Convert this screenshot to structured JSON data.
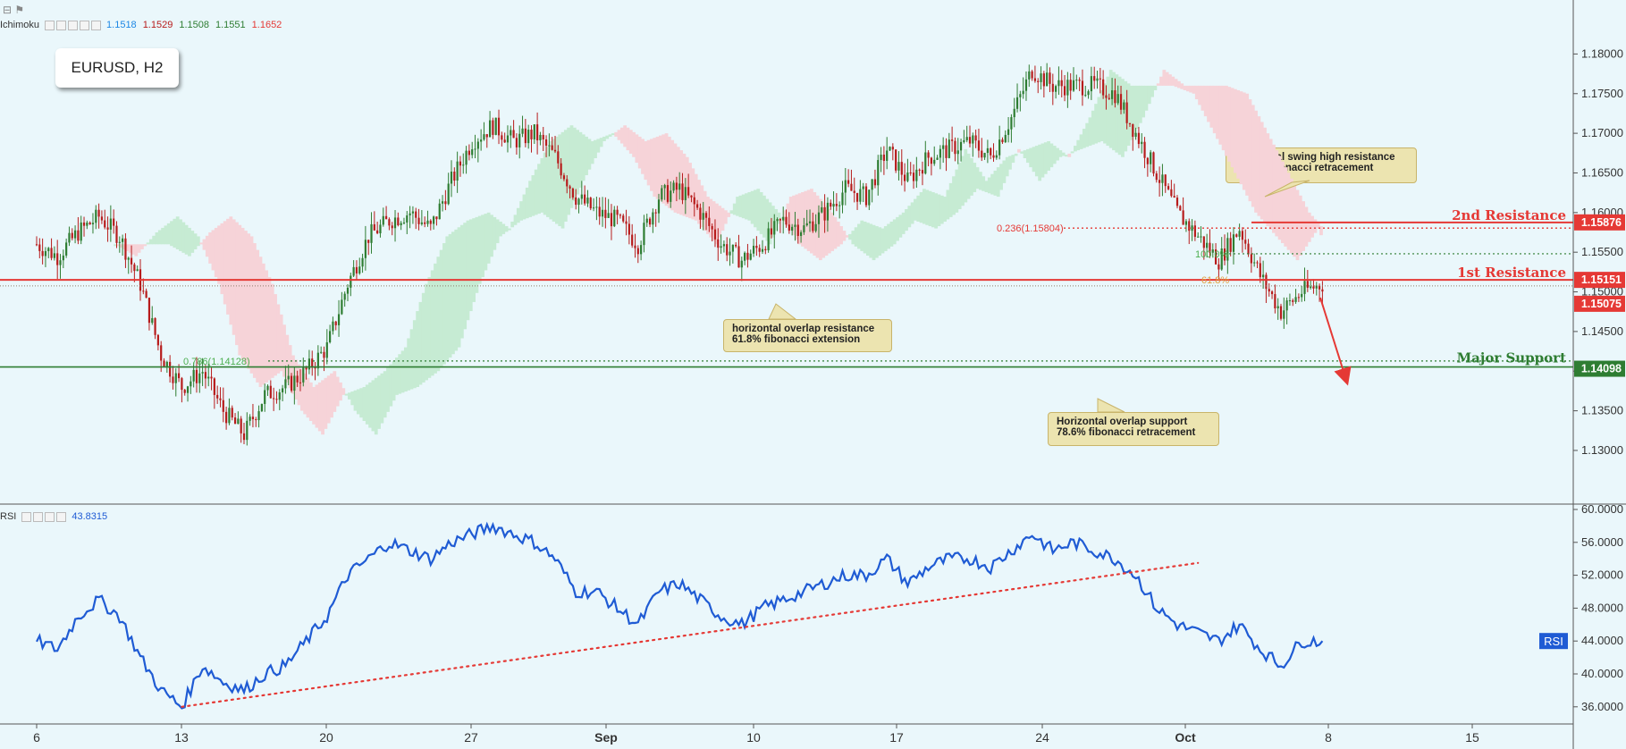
{
  "colors": {
    "background": "#eaf7fb",
    "bull": "#2e7d32",
    "bear": "#b71c1c",
    "rsi": "#1f5bd4",
    "resistance": "#e53935",
    "support": "#2e7d32",
    "cloud_bull": "#c6ebd3",
    "cloud_bear": "#f6d3d8"
  },
  "header": {
    "symbol_label": "EURUSD, H2",
    "ichimoku_label": "Ichimoku",
    "ichimoku_values": [
      "1.1518",
      "1.1529",
      "1.1508",
      "1.1551",
      "1.1652"
    ],
    "ichimoku_colors": [
      "#1e88e5",
      "#b71c1c",
      "#2e7d32",
      "#2e7d32",
      "#e53935"
    ],
    "rsi_label": "RSI",
    "rsi_value": "43.8315"
  },
  "annotations": {
    "swing_high": [
      "Horizontal swing high resistance",
      "23.6% fibonacci retracement"
    ],
    "overlap_resistance": [
      "horizontal overlap resistance",
      "61.8% fibonacci extension"
    ],
    "overlap_support": [
      "Horizontal overlap support",
      "78.6% fibonacci retracement"
    ],
    "fib_236": "0.236(1.15804)",
    "fib_100": "100.0%",
    "fib_618": "61.8%",
    "fib_786": "0.786(1.14128)",
    "second_resistance": "2nd Resistance",
    "first_resistance": "1st Resistance",
    "major_support": "Major Support",
    "rsi_badge": "RSI"
  },
  "price_tags": {
    "second_resistance": "1.15876",
    "first_resistance": "1.15151",
    "last_price": "1.15075",
    "major_support": "1.14098"
  },
  "chart_data": {
    "type": "candlestick",
    "title": "EURUSD, H2",
    "price_axis": {
      "ticks": [
        "1.18000",
        "1.17500",
        "1.17000",
        "1.16500",
        "1.16000",
        "1.15500",
        "1.15000",
        "1.14500",
        "1.14000",
        "1.13500",
        "1.13000"
      ],
      "range": [
        1.1265,
        1.1823
      ]
    },
    "rsi_axis": {
      "ticks": [
        "60.0000",
        "56.0000",
        "52.0000",
        "48.0000",
        "44.0000",
        "40.0000",
        "36.0000"
      ],
      "range": [
        35.0,
        60.0
      ]
    },
    "time_axis": {
      "labels": [
        "6",
        "13",
        "20",
        "27",
        "Sep",
        "10",
        "17",
        "24",
        "Oct",
        "8",
        "15"
      ]
    },
    "price_path": [
      [
        "Aug 6",
        1.156
      ],
      [
        "Aug 7",
        1.1545
      ],
      [
        "Aug 8",
        1.1575
      ],
      [
        "Aug 9",
        1.1595
      ],
      [
        "Aug 10",
        1.157
      ],
      [
        "Aug 11",
        1.151
      ],
      [
        "Aug 12",
        1.142
      ],
      [
        "Aug 13",
        1.138
      ],
      [
        "Aug 14",
        1.14
      ],
      [
        "Aug 15",
        1.135
      ],
      [
        "Aug 16",
        1.132
      ],
      [
        "Aug 17",
        1.137
      ],
      [
        "Aug 18",
        1.138
      ],
      [
        "Aug 19",
        1.14
      ],
      [
        "Aug 20",
        1.143
      ],
      [
        "Aug 21",
        1.151
      ],
      [
        "Aug 22",
        1.157
      ],
      [
        "Aug 23",
        1.159
      ],
      [
        "Aug 24",
        1.16
      ],
      [
        "Aug 25",
        1.158
      ],
      [
        "Aug 26",
        1.164
      ],
      [
        "Aug 27",
        1.169
      ],
      [
        "Aug 28",
        1.171
      ],
      [
        "Aug 29",
        1.169
      ],
      [
        "Aug 30",
        1.17
      ],
      [
        "Aug 31",
        1.167
      ],
      [
        "Sep 1",
        1.162
      ],
      [
        "Sep 2",
        1.16
      ],
      [
        "Sep 3",
        1.159
      ],
      [
        "Sep 4",
        1.156
      ],
      [
        "Sep 5",
        1.162
      ],
      [
        "Sep 6",
        1.163
      ],
      [
        "Sep 7",
        1.16
      ],
      [
        "Sep 8",
        1.156
      ],
      [
        "Sep 9",
        1.154
      ],
      [
        "Sep 10",
        1.156
      ],
      [
        "Sep 11",
        1.159
      ],
      [
        "Sep 12",
        1.158
      ],
      [
        "Sep 13",
        1.16
      ],
      [
        "Sep 14",
        1.163
      ],
      [
        "Sep 15",
        1.162
      ],
      [
        "Sep 16",
        1.168
      ],
      [
        "Sep 17",
        1.164
      ],
      [
        "Sep 18",
        1.167
      ],
      [
        "Sep 19",
        1.168
      ],
      [
        "Sep 20",
        1.169
      ],
      [
        "Sep 21",
        1.167
      ],
      [
        "Sep 22",
        1.172
      ],
      [
        "Sep 23",
        1.178
      ],
      [
        "Sep 24",
        1.176
      ],
      [
        "Sep 25",
        1.176
      ],
      [
        "Sep 26",
        1.176
      ],
      [
        "Sep 27",
        1.175
      ],
      [
        "Sep 28",
        1.17
      ],
      [
        "Sep 29",
        1.165
      ],
      [
        "Sep 30",
        1.16
      ],
      [
        "Oct 1",
        1.157
      ],
      [
        "Oct 2",
        1.154
      ],
      [
        "Oct 3",
        1.158
      ],
      [
        "Oct 4",
        1.152
      ],
      [
        "Oct 5",
        1.1475
      ],
      [
        "Oct 6",
        1.15
      ],
      [
        "Oct 7",
        1.151
      ]
    ],
    "rsi_path": [
      [
        "Aug 6",
        44
      ],
      [
        "Aug 7",
        43
      ],
      [
        "Aug 8",
        47
      ],
      [
        "Aug 9",
        49
      ],
      [
        "Aug 10",
        47
      ],
      [
        "Aug 11",
        42
      ],
      [
        "Aug 12",
        38
      ],
      [
        "Aug 13",
        36
      ],
      [
        "Aug 14",
        41
      ],
      [
        "Aug 15",
        39
      ],
      [
        "Aug 16",
        38
      ],
      [
        "Aug 17",
        40
      ],
      [
        "Aug 18",
        41
      ],
      [
        "Aug 19",
        44
      ],
      [
        "Aug 20",
        47
      ],
      [
        "Aug 21",
        52
      ],
      [
        "Aug 22",
        54
      ],
      [
        "Aug 23",
        56
      ],
      [
        "Aug 24",
        55
      ],
      [
        "Aug 25",
        54
      ],
      [
        "Aug 26",
        56
      ],
      [
        "Aug 27",
        57
      ],
      [
        "Aug 28",
        58
      ],
      [
        "Aug 29",
        57
      ],
      [
        "Aug 30",
        56
      ],
      [
        "Aug 31",
        54
      ],
      [
        "Sep 1",
        50
      ],
      [
        "Sep 2",
        50
      ],
      [
        "Sep 3",
        48
      ],
      [
        "Sep 4",
        46
      ],
      [
        "Sep 5",
        50
      ],
      [
        "Sep 6",
        51
      ],
      [
        "Sep 7",
        49
      ],
      [
        "Sep 8",
        47
      ],
      [
        "Sep 9",
        46
      ],
      [
        "Sep 10",
        48
      ],
      [
        "Sep 11",
        49
      ],
      [
        "Sep 12",
        50
      ],
      [
        "Sep 13",
        51
      ],
      [
        "Sep 14",
        52
      ],
      [
        "Sep 15",
        52
      ],
      [
        "Sep 16",
        54
      ],
      [
        "Sep 17",
        51
      ],
      [
        "Sep 18",
        53
      ],
      [
        "Sep 19",
        54
      ],
      [
        "Sep 20",
        54
      ],
      [
        "Sep 21",
        53
      ],
      [
        "Sep 22",
        55
      ],
      [
        "Sep 23",
        57
      ],
      [
        "Sep 24",
        55
      ],
      [
        "Sep 25",
        56
      ],
      [
        "Sep 26",
        55
      ],
      [
        "Sep 27",
        54
      ],
      [
        "Sep 28",
        52
      ],
      [
        "Sep 29",
        48
      ],
      [
        "Sep 30",
        46
      ],
      [
        "Oct 1",
        45
      ],
      [
        "Oct 2",
        44
      ],
      [
        "Oct 3",
        46
      ],
      [
        "Oct 4",
        43
      ],
      [
        "Oct 5",
        41
      ],
      [
        "Oct 6",
        44
      ],
      [
        "Oct 7",
        44
      ]
    ],
    "levels": {
      "second_resistance": 1.15876,
      "fib_236": 1.15804,
      "fib_100": 1.1548,
      "first_resistance": 1.15151,
      "last_price": 1.15075,
      "fib_786": 1.14128,
      "major_support": 1.14098
    },
    "rsi_trendline": [
      [
        "Aug 13",
        36
      ],
      [
        "Oct 1",
        53.5
      ]
    ]
  }
}
